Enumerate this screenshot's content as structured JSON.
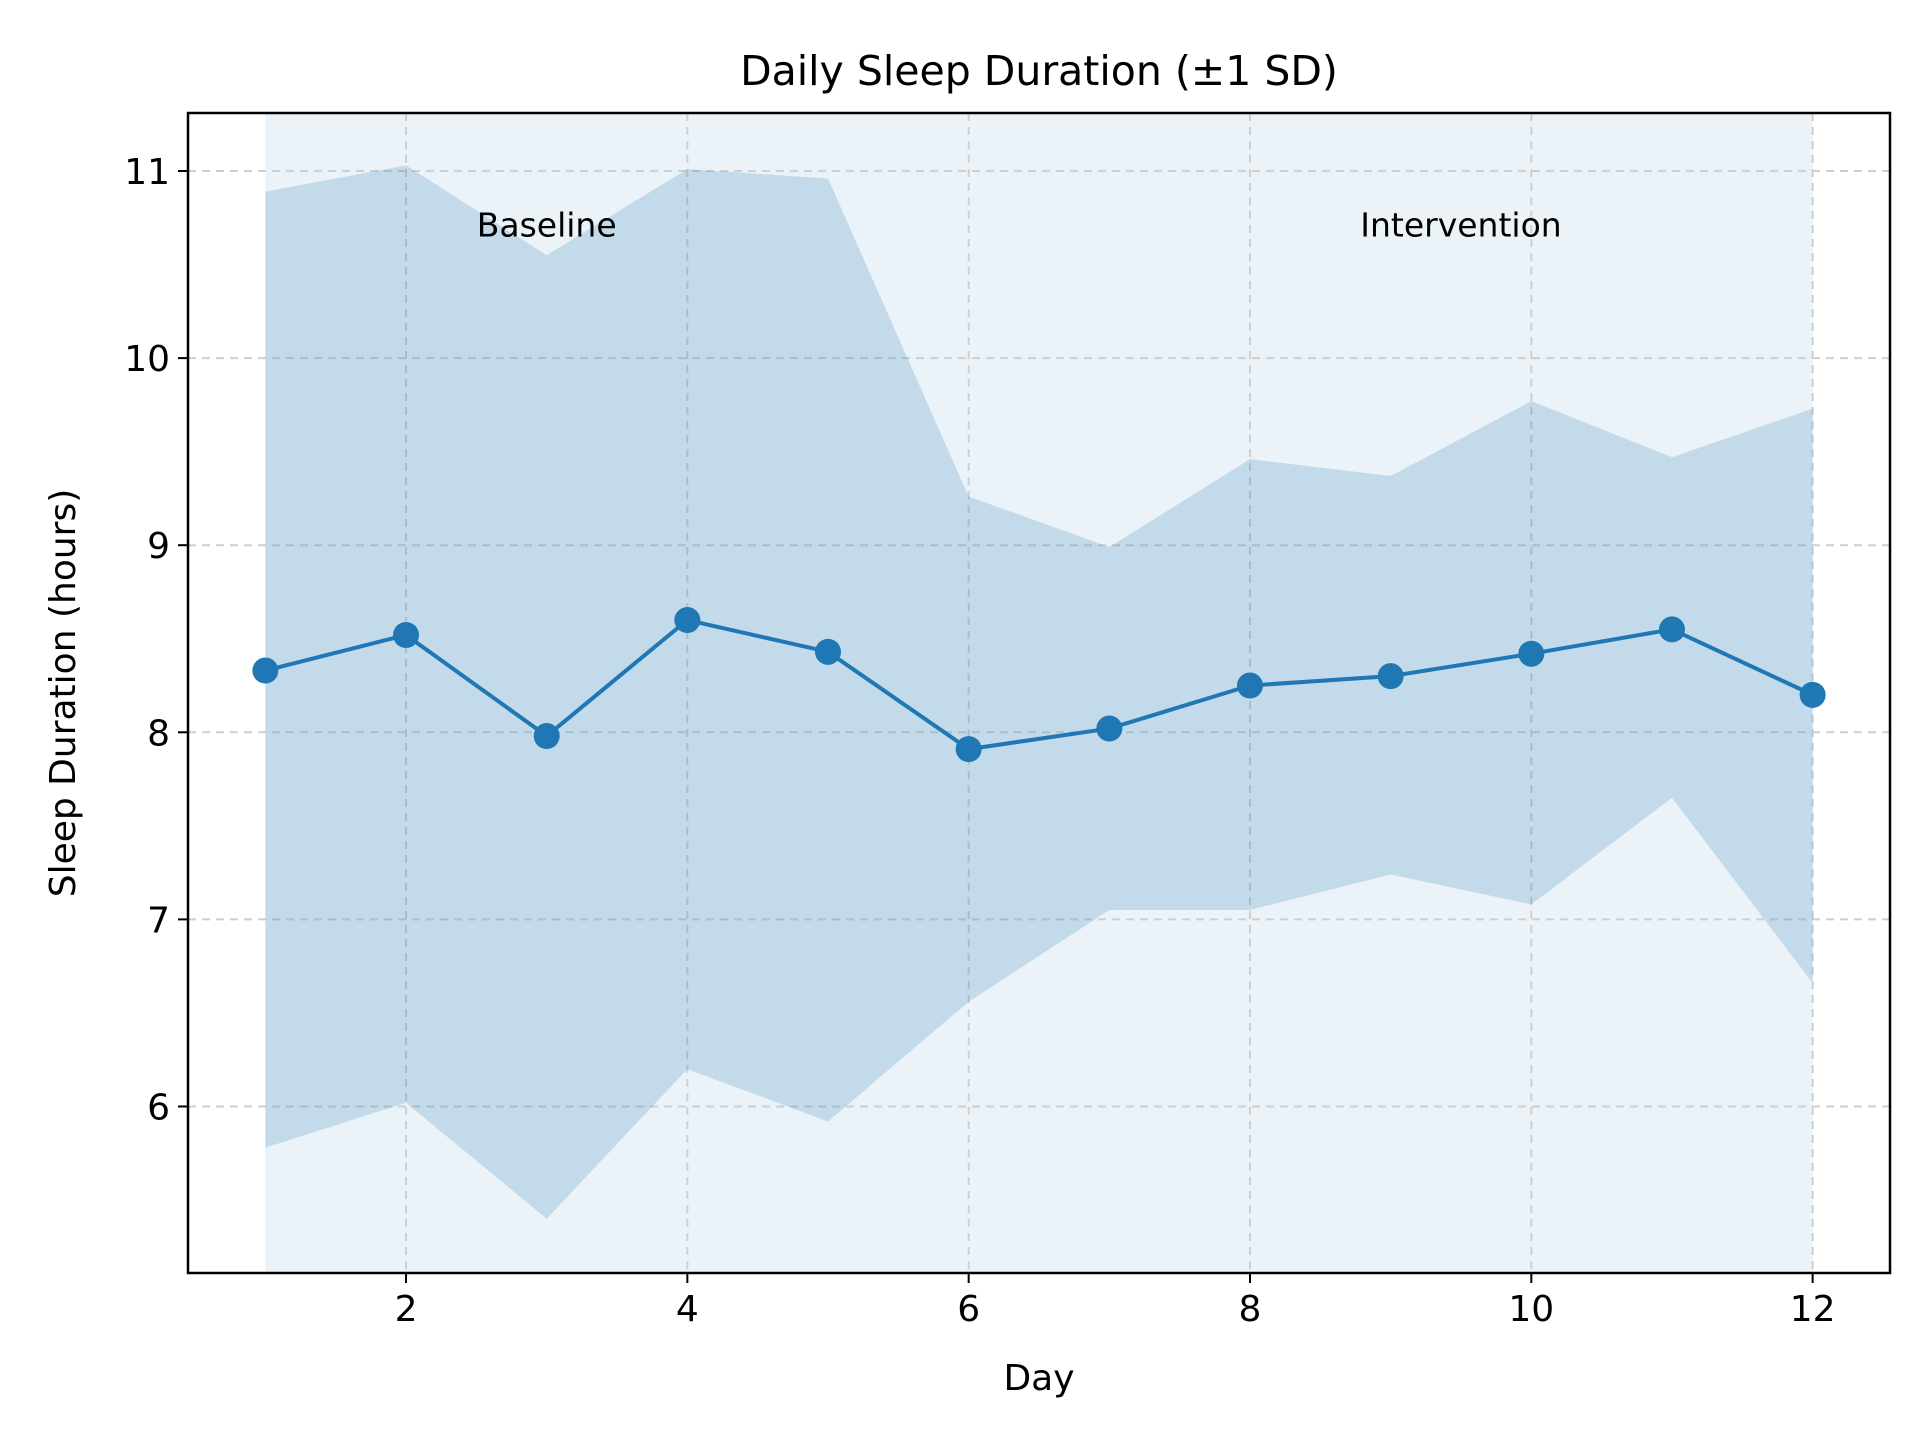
{
  "chart_data": {
    "type": "line",
    "title": "Daily Sleep Duration (±1 SD)",
    "xlabel": "Day",
    "ylabel": "Sleep Duration (hours)",
    "x": [
      1,
      2,
      3,
      4,
      5,
      6,
      7,
      8,
      9,
      10,
      11,
      12
    ],
    "series": [
      {
        "values": [
          8.33,
          8.52,
          7.98,
          8.6,
          8.43,
          7.91,
          8.02,
          8.25,
          8.3,
          8.42,
          8.55,
          8.2
        ],
        "upper": [
          10.89,
          11.03,
          10.55,
          11.01,
          10.96,
          9.26,
          8.99,
          9.46,
          9.37,
          9.77,
          9.47,
          9.73
        ],
        "lower": [
          5.78,
          6.02,
          5.4,
          6.2,
          5.92,
          6.56,
          7.05,
          7.05,
          7.24,
          7.08,
          7.65,
          6.66
        ],
        "color": "#1f77b4",
        "band_color": "#1f77b4"
      }
    ],
    "xlim": [
      0.45,
      12.55
    ],
    "ylim": [
      5.11,
      11.31
    ],
    "xticks": [
      2,
      4,
      6,
      8,
      10,
      12
    ],
    "yticks": [
      6,
      7,
      8,
      9,
      10,
      11
    ],
    "shaded_span": {
      "x": [
        1,
        12
      ],
      "color": "#1f77b4"
    },
    "annotations": [
      {
        "text": "Baseline",
        "x": 3,
        "y": 10.65
      },
      {
        "text": "Intervention",
        "x": 9.5,
        "y": 10.65
      }
    ],
    "grid": true
  }
}
